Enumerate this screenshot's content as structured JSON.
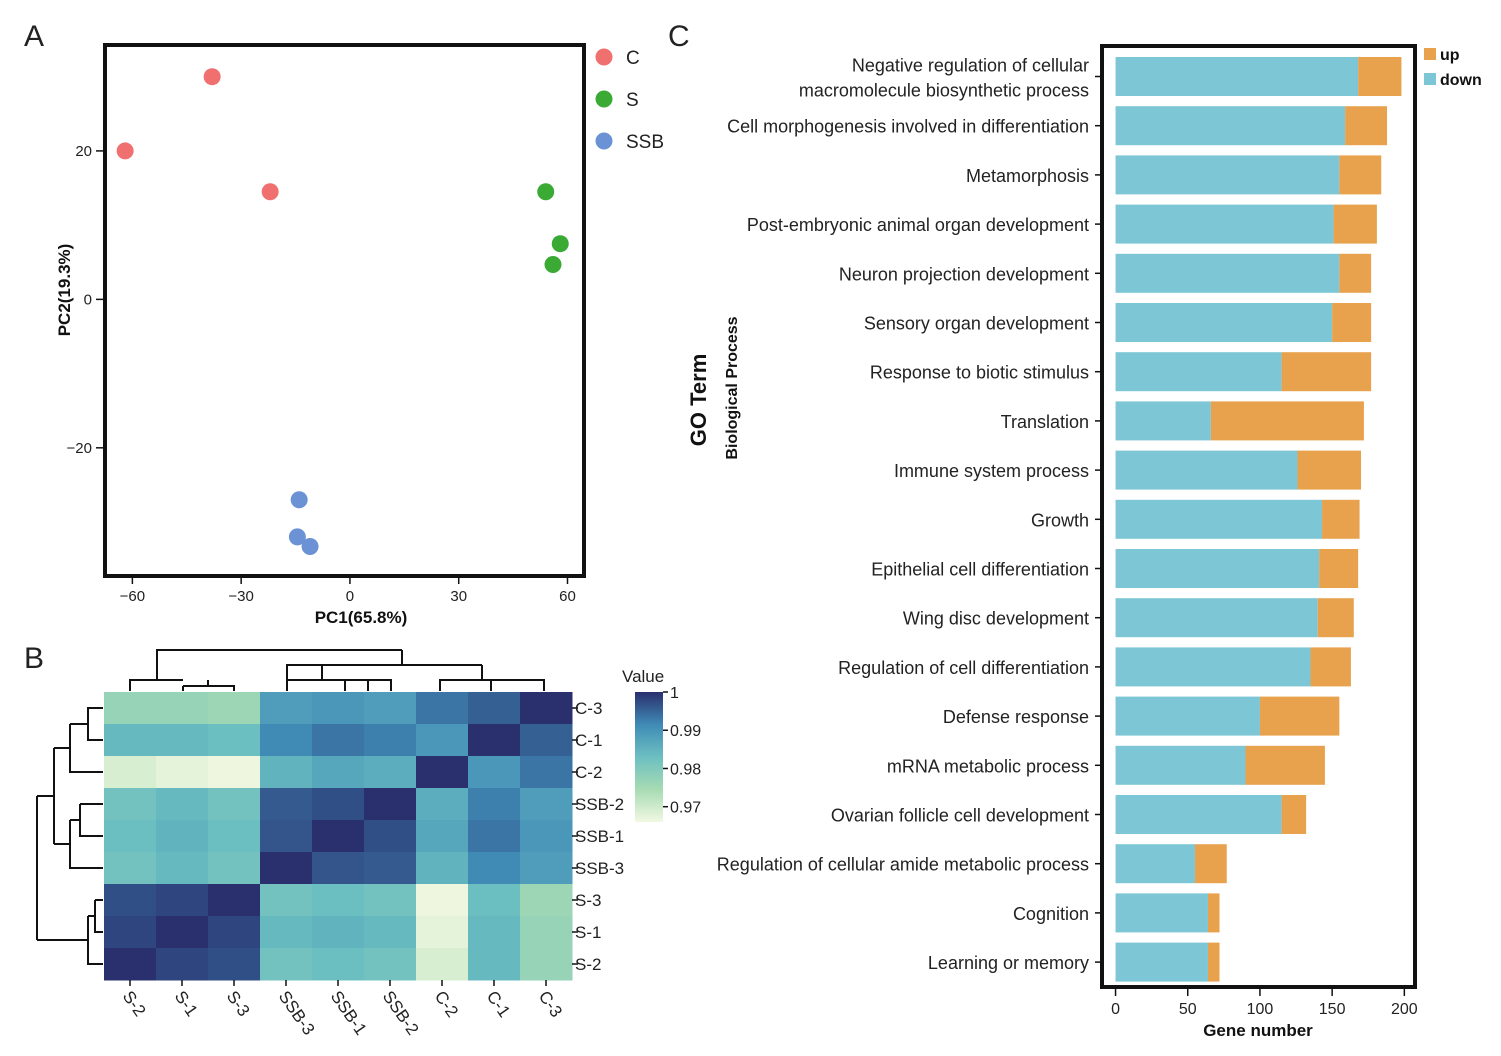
{
  "colors": {
    "C": "#f07070",
    "S": "#3aaa35",
    "SSB": "#6a92d4",
    "bar_down": "#7cc6d6",
    "bar_up": "#e8a24e"
  },
  "panel_labels": {
    "a": "A",
    "b": "B",
    "c": "C"
  },
  "chart_data": [
    {
      "type": "scatter",
      "panel": "A",
      "title": "",
      "xlabel": "PC1(65.8%)",
      "ylabel": "PC2(19.3%)",
      "xlim": [
        -67,
        64
      ],
      "ylim": [
        -37,
        34
      ],
      "xticks": [
        -60,
        -30,
        0,
        30,
        60
      ],
      "yticks": [
        -20,
        0,
        20
      ],
      "xtick_labels": [
        "−60",
        "−30",
        "0",
        "30",
        "60"
      ],
      "ytick_labels": [
        "−20",
        "0",
        "20"
      ],
      "legend": [
        "C",
        "S",
        "SSB"
      ],
      "series": [
        {
          "name": "C",
          "points": [
            [
              -62,
              20
            ],
            [
              -38,
              30
            ],
            [
              -22,
              14.5
            ]
          ]
        },
        {
          "name": "S",
          "points": [
            [
              54,
              14.5
            ],
            [
              58,
              7.5
            ],
            [
              56,
              4.7
            ]
          ]
        },
        {
          "name": "SSB",
          "points": [
            [
              -14,
              -27
            ],
            [
              -14.5,
              -32
            ],
            [
              -11,
              -33.3
            ]
          ]
        }
      ]
    },
    {
      "type": "heatmap",
      "panel": "B",
      "rows": [
        "C-3",
        "C-1",
        "C-2",
        "SSB-2",
        "SSB-1",
        "SSB-3",
        "S-3",
        "S-1",
        "S-2"
      ],
      "cols": [
        "S-2",
        "S-1",
        "S-3",
        "SSB-3",
        "SSB-1",
        "SSB-2",
        "C-2",
        "C-1",
        "C-3"
      ],
      "values": [
        [
          0.977,
          0.977,
          0.976,
          0.9885,
          0.9895,
          0.9885,
          0.9935,
          0.9955,
          1.0
        ],
        [
          0.984,
          0.984,
          0.983,
          0.9915,
          0.9935,
          0.9925,
          0.9895,
          1.0,
          0.9955
        ],
        [
          0.969,
          0.9675,
          0.9665,
          0.985,
          0.987,
          0.986,
          1.0,
          0.9895,
          0.9935
        ],
        [
          0.982,
          0.984,
          0.982,
          0.996,
          0.997,
          1.0,
          0.986,
          0.9925,
          0.9885
        ],
        [
          0.983,
          0.985,
          0.983,
          0.9965,
          1.0,
          0.997,
          0.987,
          0.9935,
          0.9895
        ],
        [
          0.982,
          0.984,
          0.982,
          1.0,
          0.9965,
          0.996,
          0.985,
          0.9915,
          0.9885
        ],
        [
          0.997,
          0.998,
          1.0,
          0.982,
          0.983,
          0.982,
          0.9665,
          0.983,
          0.976
        ],
        [
          0.998,
          1.0,
          0.998,
          0.984,
          0.985,
          0.984,
          0.9675,
          0.984,
          0.977
        ],
        [
          1.0,
          0.998,
          0.997,
          0.982,
          0.983,
          0.982,
          0.969,
          0.984,
          0.977
        ]
      ],
      "colorbar": {
        "title": "Value",
        "min": 0.966,
        "max": 1.0,
        "ticks": [
          1,
          0.99,
          0.98,
          0.97
        ],
        "tick_labels": [
          "1",
          "0.99",
          "0.98",
          "0.97"
        ]
      }
    },
    {
      "type": "bar",
      "panel": "C",
      "orientation": "horizontal",
      "stacked": true,
      "xlabel": "Gene number",
      "ylabel": "GO Term",
      "ylabel_sub": "Biological Process",
      "xlim": [
        -8,
        206
      ],
      "xticks": [
        0,
        50,
        100,
        150,
        200
      ],
      "xtick_labels": [
        "0",
        "50",
        "100",
        "150",
        "200"
      ],
      "legend": [
        "up",
        "down"
      ],
      "categories": [
        "Negative regulation of cellular|macromolecule biosynthetic process",
        "Cell morphogenesis involved in differentiation",
        "Metamorphosis",
        "Post-embryonic animal organ development",
        "Neuron projection development",
        "Sensory organ development",
        "Response to biotic stimulus",
        "Translation",
        "Immune system process",
        "Growth",
        "Epithelial cell differentiation",
        "Wing disc development",
        "Regulation of cell differentiation",
        "Defense response",
        "mRNA metabolic process",
        "Ovarian follicle cell development",
        "Regulation of cellular amide metabolic process",
        "Cognition",
        "Learning or memory"
      ],
      "series": [
        {
          "name": "down",
          "values": [
            168,
            159,
            155,
            151,
            155,
            150,
            115,
            66,
            126,
            143,
            141,
            140,
            135,
            100,
            90,
            115,
            55,
            64,
            64
          ]
        },
        {
          "name": "up",
          "values": [
            30,
            29,
            29,
            30,
            22,
            27,
            62,
            106,
            44,
            26,
            27,
            25,
            28,
            55,
            55,
            17,
            22,
            8,
            8
          ]
        }
      ]
    }
  ]
}
